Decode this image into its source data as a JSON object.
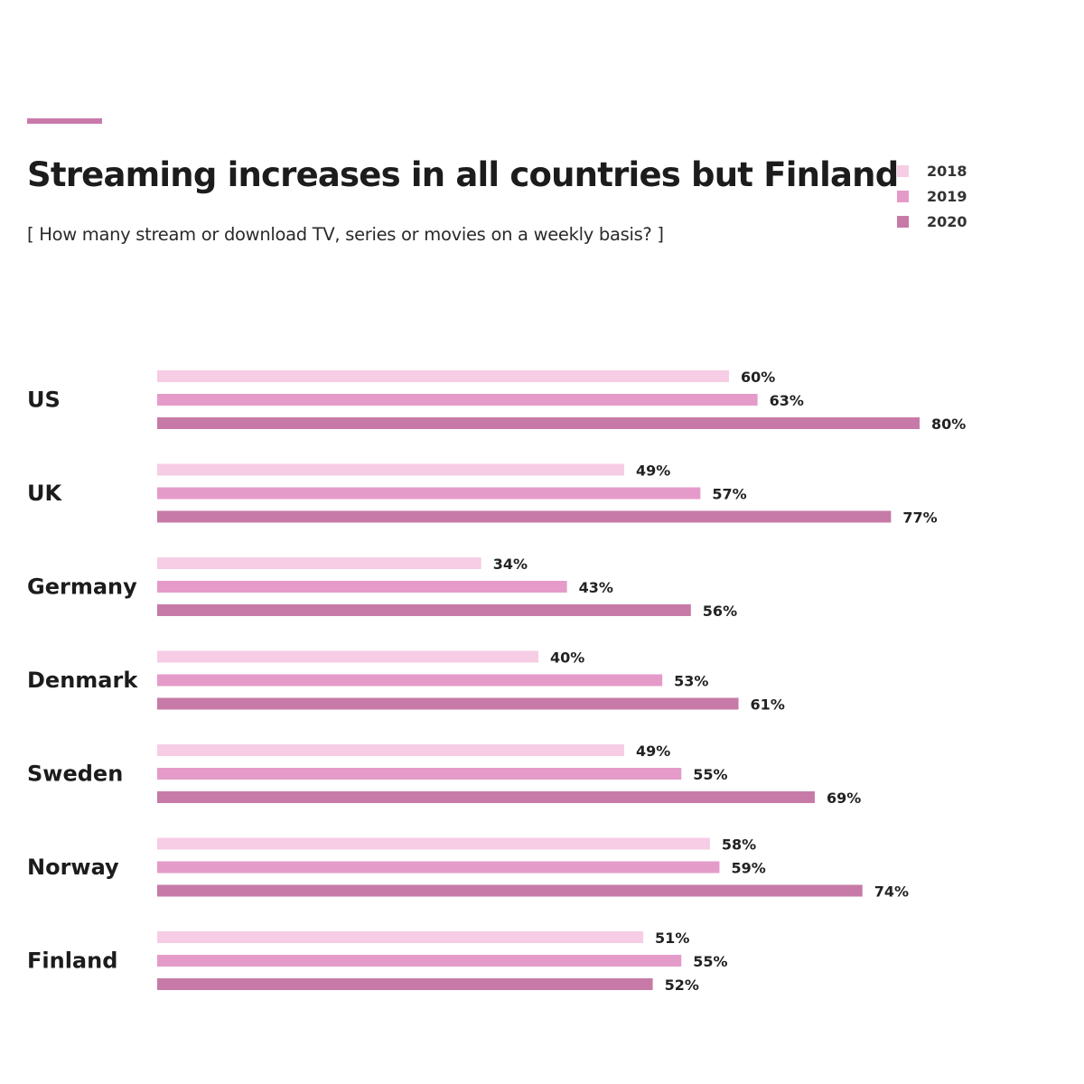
{
  "chart_data": {
    "type": "bar",
    "orientation": "horizontal",
    "title": "Streaming increases in all countries but Finland",
    "subtitle": "[ How many stream or download TV, series or movies on a weekly basis? ]",
    "categories": [
      "US",
      "UK",
      "Germany",
      "Denmark",
      "Sweden",
      "Norway",
      "Finland"
    ],
    "series": [
      {
        "name": "2018",
        "color": "#f6cde5",
        "values": [
          60,
          49,
          34,
          40,
          49,
          58,
          51
        ]
      },
      {
        "name": "2019",
        "color": "#e59bc9",
        "values": [
          63,
          57,
          43,
          53,
          55,
          59,
          55
        ]
      },
      {
        "name": "2020",
        "color": "#c77aa7",
        "values": [
          80,
          77,
          56,
          61,
          69,
          74,
          52
        ]
      }
    ],
    "value_suffix": "%",
    "xlim": [
      0,
      100
    ],
    "grid": false,
    "legend_position": "top-right",
    "accent_color": "#c97aaa"
  }
}
